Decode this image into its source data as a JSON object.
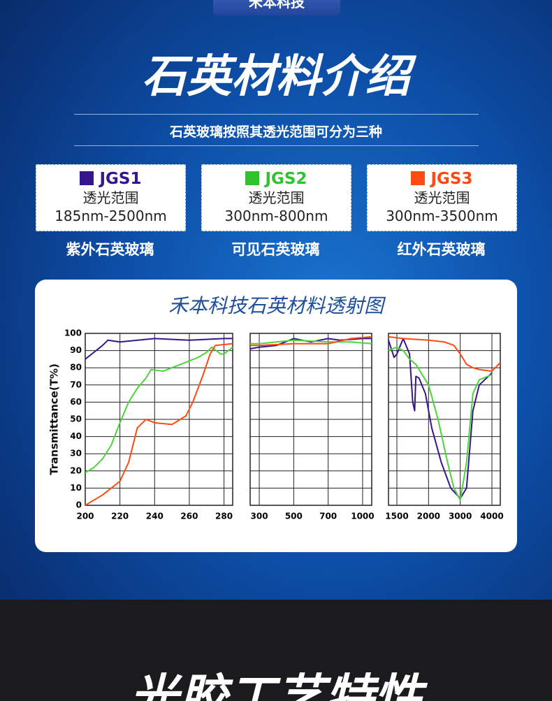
{
  "header": {
    "tab": "禾本科技",
    "title": "石英材料介绍",
    "subtitle": "石英玻璃按照其透光范围可分为三种"
  },
  "cards": [
    {
      "name": "JGS1",
      "color": "#36168c",
      "label": "透光范围",
      "range": "185nm-2500nm",
      "caption": "紫外石英玻璃"
    },
    {
      "name": "JGS2",
      "color": "#2fc42f",
      "label": "透光范围",
      "range": "300nm-800nm",
      "caption": "可见石英玻璃"
    },
    {
      "name": "JGS3",
      "color": "#ff4a12",
      "label": "透光范围",
      "range": "300nm-3500nm",
      "caption": "红外石英玻璃"
    }
  ],
  "chart_data": {
    "type": "line",
    "title": "禾本科技石英材料透射图",
    "y_label": "Transmittance(T%)",
    "ylim": [
      0,
      100
    ],
    "yticks": [
      0,
      10,
      20,
      30,
      40,
      50,
      60,
      70,
      80,
      90,
      100
    ],
    "grid": true,
    "panels": [
      {
        "x_scale": "linear",
        "xlim": [
          200,
          285
        ],
        "xticks": [
          200,
          220,
          240,
          260,
          280
        ],
        "series": [
          {
            "name": "JGS1",
            "color": "#36168c",
            "x": [
              200,
              205,
              210,
              213,
              220,
              240,
              260,
              280,
              285
            ],
            "values": [
              85,
              89,
              93,
              96,
              95,
              97,
              96,
              97,
              97
            ]
          },
          {
            "name": "JGS2",
            "color": "#4cd43a",
            "x": [
              200,
              205,
              210,
              215,
              220,
              225,
              230,
              235,
              238,
              245,
              255,
              265,
              270,
              273,
              278,
              280,
              285
            ],
            "values": [
              19,
              22,
              27,
              35,
              48,
              60,
              68,
              74,
              79,
              78,
              82,
              86,
              89,
              92,
              88,
              88,
              92
            ]
          },
          {
            "name": "JGS3",
            "color": "#ff4a12",
            "x": [
              200,
              210,
              220,
              225,
              230,
              235,
              240,
              250,
              258,
              262,
              268,
              272,
              275,
              285
            ],
            "values": [
              0,
              6,
              14,
              25,
              45,
              50,
              48,
              47,
              52,
              60,
              76,
              88,
              93,
              94
            ]
          }
        ]
      },
      {
        "x_scale": "even_ticks",
        "xlim": [
          250,
          1080
        ],
        "xticks": [
          300,
          500,
          700,
          1000
        ],
        "series": [
          {
            "name": "JGS1",
            "color": "#36168c",
            "x": [
              250,
              300,
              400,
              500,
              600,
              700,
              800,
              1000,
              1080
            ],
            "values": [
              91,
              92,
              93,
              97,
              95,
              97,
              96,
              97,
              97
            ]
          },
          {
            "name": "JGS2",
            "color": "#4cd43a",
            "x": [
              250,
              300,
              500,
              700,
              900,
              1080
            ],
            "values": [
              94,
              94,
              96,
              95,
              95,
              94
            ]
          },
          {
            "name": "JGS3",
            "color": "#ff4a12",
            "x": [
              250,
              300,
              500,
              700,
              900,
              1080
            ],
            "values": [
              93,
              93,
              94,
              94,
              97,
              98
            ]
          }
        ]
      },
      {
        "x_scale": "even_ticks",
        "xlim": [
          1350,
          4050
        ],
        "xticks": [
          1500,
          2000,
          3000,
          4000
        ],
        "series": [
          {
            "name": "JGS1",
            "color": "#36168c",
            "x": [
              1350,
              1450,
              1500,
              1600,
              1700,
              1750,
              1780,
              1800,
              1850,
              1950,
              2100,
              2400,
              2700,
              3000,
              3200,
              3400,
              3600,
              4000
            ],
            "values": [
              96,
              86,
              88,
              97,
              88,
              60,
              55,
              75,
              74,
              65,
              45,
              25,
              10,
              4,
              10,
              55,
              70,
              77
            ]
          },
          {
            "name": "JGS2",
            "color": "#4cd43a",
            "x": [
              1350,
              1500,
              1600,
              1700,
              1800,
              2000,
              2300,
              2600,
              2800,
              3000,
              3200,
              3400,
              3600,
              4000
            ],
            "values": [
              90,
              92,
              90,
              85,
              82,
              70,
              50,
              25,
              10,
              3,
              25,
              65,
              73,
              76
            ]
          },
          {
            "name": "JGS3",
            "color": "#ff4a12",
            "x": [
              1350,
              1600,
              2000,
              2500,
              2800,
              3000,
              3200,
              3400,
              3600,
              4000,
              4050
            ],
            "values": [
              98,
              97,
              96,
              95,
              93,
              88,
              82,
              80,
              79,
              78,
              83
            ]
          }
        ]
      }
    ]
  },
  "footer": {
    "title": "光胶工艺特性"
  }
}
